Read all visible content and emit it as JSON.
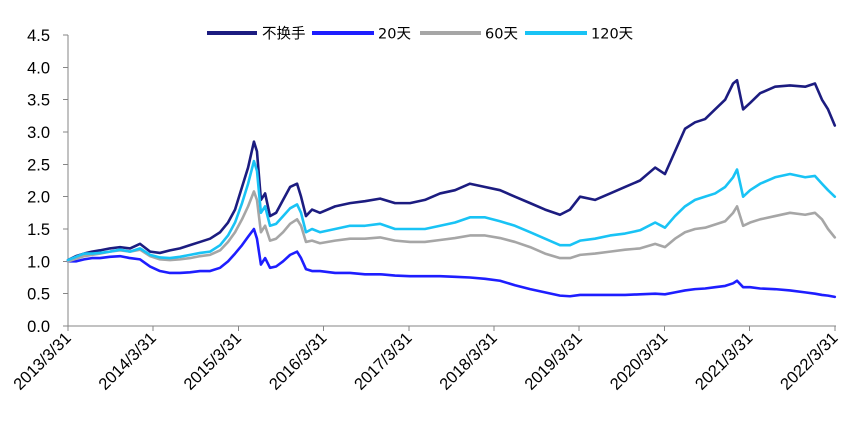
{
  "chart_data": {
    "type": "line",
    "title": "",
    "xlabel": "",
    "ylabel": "",
    "grid": false,
    "legend": "top",
    "xlim": [
      "2013-03-31",
      "2022-03-31"
    ],
    "ylim": [
      0,
      4.5
    ],
    "yticks": [
      "0.0",
      "0.5",
      "1.0",
      "1.5",
      "2.0",
      "2.5",
      "3.0",
      "3.5",
      "4.0",
      "4.5"
    ],
    "xticks": [
      "2013/3/31",
      "2014/3/31",
      "2015/3/31",
      "2016/3/31",
      "2017/3/31",
      "2018/3/31",
      "2019/3/31",
      "2020/3/31",
      "2021/3/31",
      "2022/3/31"
    ],
    "x": [
      "2013-03-31",
      "2013-05-04",
      "2013-06-08",
      "2013-07-12",
      "2013-08-15",
      "2013-09-27",
      "2013-11-09",
      "2013-12-22",
      "2014-02-03",
      "2014-03-18",
      "2014-04-29",
      "2014-06-11",
      "2014-07-24",
      "2014-09-05",
      "2014-10-18",
      "2014-11-30",
      "2015-01-12",
      "2015-02-15",
      "2015-03-17",
      "2015-04-16",
      "2015-05-12",
      "2015-06-06",
      "2015-06-19",
      "2015-07-06",
      "2015-07-24",
      "2015-08-14",
      "2015-09-09",
      "2015-10-09",
      "2015-11-08",
      "2015-12-08",
      "2015-12-25",
      "2016-01-15",
      "2016-02-10",
      "2016-03-15",
      "2016-05-19",
      "2016-07-22",
      "2016-09-24",
      "2016-11-28",
      "2017-01-31",
      "2017-04-05",
      "2017-06-08",
      "2017-08-12",
      "2017-10-15",
      "2017-12-18",
      "2018-02-21",
      "2018-04-26",
      "2018-06-29",
      "2018-09-02",
      "2018-11-05",
      "2019-01-08",
      "2019-02-20",
      "2019-04-04",
      "2019-06-07",
      "2019-08-11",
      "2019-10-14",
      "2019-12-17",
      "2020-02-20",
      "2020-04-02",
      "2020-05-15",
      "2020-06-27",
      "2020-08-09",
      "2020-09-21",
      "2020-11-03",
      "2020-12-16",
      "2021-01-19",
      "2021-02-05",
      "2021-03-03",
      "2021-04-02",
      "2021-05-15",
      "2021-07-18",
      "2021-09-20",
      "2021-11-24",
      "2022-01-05",
      "2022-02-04",
      "2022-03-02",
      "2022-03-31"
    ],
    "series": [
      {
        "name": "不换手",
        "color": "#1c1c80",
        "values": [
          1.02,
          1.08,
          1.12,
          1.15,
          1.17,
          1.2,
          1.22,
          1.2,
          1.27,
          1.15,
          1.13,
          1.17,
          1.2,
          1.25,
          1.3,
          1.35,
          1.45,
          1.6,
          1.8,
          2.15,
          2.45,
          2.85,
          2.7,
          1.95,
          2.05,
          1.7,
          1.75,
          1.95,
          2.15,
          2.2,
          2.0,
          1.7,
          1.8,
          1.75,
          1.85,
          1.9,
          1.93,
          1.97,
          1.9,
          1.9,
          1.95,
          2.05,
          2.1,
          2.2,
          2.15,
          2.1,
          2.0,
          1.9,
          1.8,
          1.72,
          1.8,
          2.0,
          1.95,
          2.05,
          2.15,
          2.25,
          2.45,
          2.35,
          2.7,
          3.05,
          3.15,
          3.2,
          3.35,
          3.5,
          3.75,
          3.8,
          3.35,
          3.45,
          3.6,
          3.7,
          3.72,
          3.7,
          3.75,
          3.5,
          3.35,
          3.1
        ]
      },
      {
        "name": "20天",
        "color": "#1e1eff",
        "values": [
          1.0,
          1.0,
          1.03,
          1.05,
          1.05,
          1.07,
          1.08,
          1.05,
          1.03,
          0.92,
          0.85,
          0.82,
          0.82,
          0.83,
          0.85,
          0.85,
          0.9,
          1.0,
          1.12,
          1.25,
          1.38,
          1.5,
          1.35,
          0.95,
          1.05,
          0.9,
          0.92,
          1.0,
          1.1,
          1.15,
          1.05,
          0.88,
          0.85,
          0.85,
          0.82,
          0.82,
          0.8,
          0.8,
          0.78,
          0.77,
          0.77,
          0.77,
          0.76,
          0.75,
          0.73,
          0.7,
          0.63,
          0.57,
          0.52,
          0.47,
          0.46,
          0.48,
          0.48,
          0.48,
          0.48,
          0.49,
          0.5,
          0.49,
          0.52,
          0.55,
          0.57,
          0.58,
          0.6,
          0.62,
          0.66,
          0.7,
          0.6,
          0.6,
          0.58,
          0.57,
          0.55,
          0.52,
          0.5,
          0.48,
          0.47,
          0.45
        ]
      },
      {
        "name": "60天",
        "color": "#a6a6a6",
        "values": [
          1.0,
          1.04,
          1.08,
          1.1,
          1.12,
          1.15,
          1.17,
          1.15,
          1.18,
          1.08,
          1.03,
          1.02,
          1.03,
          1.05,
          1.08,
          1.1,
          1.17,
          1.3,
          1.45,
          1.65,
          1.85,
          2.08,
          1.95,
          1.45,
          1.55,
          1.32,
          1.35,
          1.45,
          1.58,
          1.65,
          1.55,
          1.3,
          1.32,
          1.28,
          1.32,
          1.35,
          1.35,
          1.37,
          1.32,
          1.3,
          1.3,
          1.33,
          1.36,
          1.4,
          1.4,
          1.36,
          1.3,
          1.22,
          1.12,
          1.05,
          1.05,
          1.1,
          1.12,
          1.15,
          1.18,
          1.2,
          1.27,
          1.22,
          1.35,
          1.45,
          1.5,
          1.52,
          1.57,
          1.62,
          1.75,
          1.85,
          1.55,
          1.6,
          1.65,
          1.7,
          1.75,
          1.72,
          1.75,
          1.65,
          1.5,
          1.37
        ]
      },
      {
        "name": "120天",
        "color": "#19c3f5",
        "values": [
          1.02,
          1.07,
          1.12,
          1.12,
          1.13,
          1.15,
          1.18,
          1.15,
          1.2,
          1.1,
          1.06,
          1.05,
          1.07,
          1.1,
          1.13,
          1.15,
          1.25,
          1.4,
          1.6,
          1.9,
          2.2,
          2.55,
          2.4,
          1.75,
          1.85,
          1.55,
          1.58,
          1.7,
          1.82,
          1.88,
          1.75,
          1.45,
          1.5,
          1.45,
          1.5,
          1.55,
          1.55,
          1.58,
          1.5,
          1.5,
          1.5,
          1.55,
          1.6,
          1.68,
          1.68,
          1.62,
          1.55,
          1.45,
          1.35,
          1.25,
          1.25,
          1.32,
          1.35,
          1.4,
          1.43,
          1.48,
          1.6,
          1.52,
          1.7,
          1.85,
          1.95,
          2.0,
          2.05,
          2.15,
          2.3,
          2.42,
          2.0,
          2.1,
          2.2,
          2.3,
          2.35,
          2.3,
          2.32,
          2.2,
          2.1,
          2.0
        ]
      }
    ]
  }
}
